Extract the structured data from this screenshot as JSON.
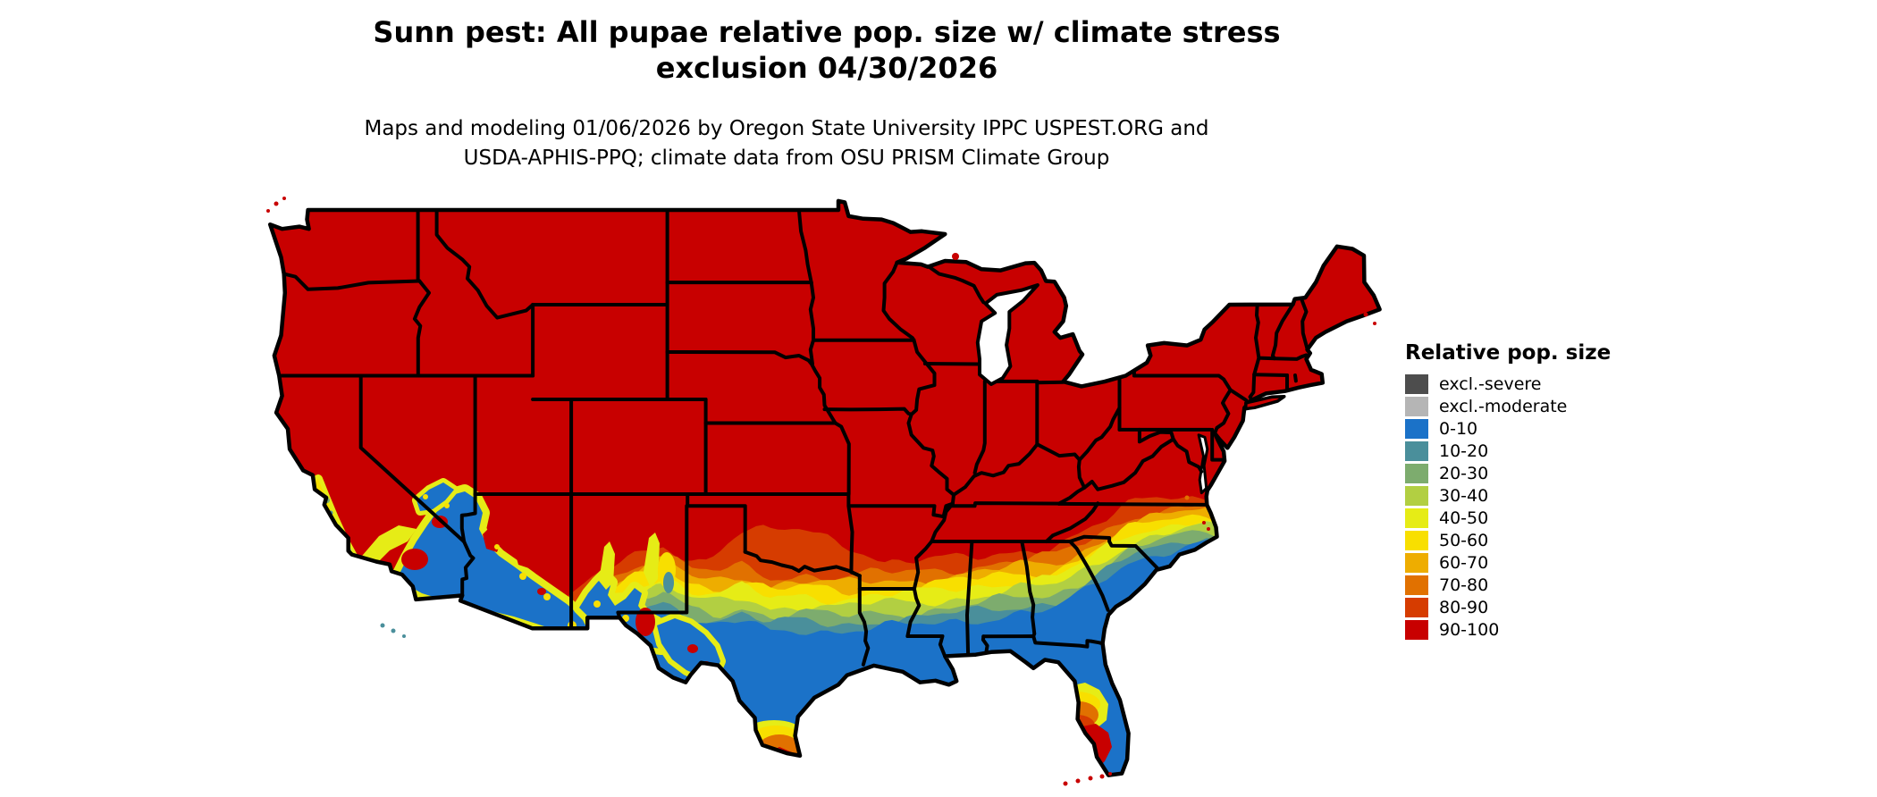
{
  "header": {
    "title_line1": "Sunn pest: All pupae relative pop. size w/ climate stress",
    "title_line2": "exclusion 04/30/2026",
    "subtitle_line1": "Maps and modeling 01/06/2026 by Oregon State University IPPC USPEST.ORG and",
    "subtitle_line2": "USDA-APHIS-PPQ; climate data from OSU PRISM Climate Group"
  },
  "legend": {
    "title": "Relative pop. size",
    "items": [
      {
        "label": "excl.-severe",
        "color": "#4d4d4d"
      },
      {
        "label": "excl.-moderate",
        "color": "#b5b5b5"
      },
      {
        "label": "0-10",
        "color": "#1b72c8"
      },
      {
        "label": "10-20",
        "color": "#4a8f9b"
      },
      {
        "label": "20-30",
        "color": "#7dac6e"
      },
      {
        "label": "30-40",
        "color": "#b2cf42"
      },
      {
        "label": "40-50",
        "color": "#e6ec16"
      },
      {
        "label": "50-60",
        "color": "#f8df00"
      },
      {
        "label": "60-70",
        "color": "#eead00"
      },
      {
        "label": "70-80",
        "color": "#e17100"
      },
      {
        "label": "80-90",
        "color": "#d63c00"
      },
      {
        "label": "90-100",
        "color": "#c80000"
      }
    ]
  },
  "map": {
    "border_color": "#000000",
    "background_color": "#ffffff",
    "dominant_fill_label": "90-100",
    "southern_fill_label": "0-10"
  }
}
